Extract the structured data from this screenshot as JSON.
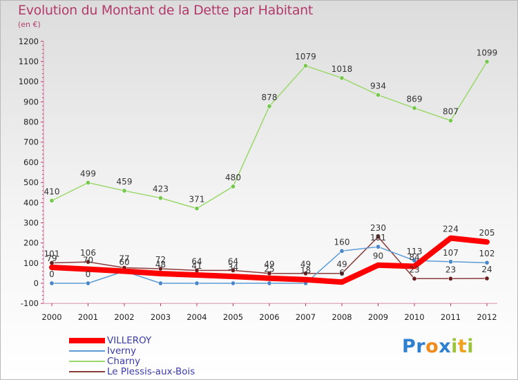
{
  "header": {
    "title": "Evolution du Montant de la Dette par Habitant",
    "unit": "(en €)"
  },
  "brand": {
    "letters": [
      {
        "ch": "P",
        "color": "#2f7fd0"
      },
      {
        "ch": "r",
        "color": "#2f7fd0"
      },
      {
        "ch": "o",
        "color": "#f08a1c"
      },
      {
        "ch": "x",
        "color": "#2f7fd0"
      },
      {
        "ch": "i",
        "color": "#9bc43b"
      },
      {
        "ch": "t",
        "color": "#f0a21c"
      },
      {
        "ch": "i",
        "color": "#9bc43b"
      }
    ]
  },
  "chart_data": {
    "type": "line",
    "title": "Evolution du Montant de la Dette par Habitant",
    "ylabel": "(en €)",
    "xlabel": "",
    "x": [
      "2000",
      "2001",
      "2002",
      "2003",
      "2004",
      "2005",
      "2006",
      "2007",
      "2008",
      "2009",
      "2010",
      "2011",
      "2012"
    ],
    "ylim": [
      -100,
      1200
    ],
    "yticks": [
      -100,
      0,
      100,
      200,
      300,
      400,
      500,
      600,
      700,
      800,
      900,
      1000,
      1100,
      1200
    ],
    "grid": false,
    "legend_position": "bottom-left",
    "series": [
      {
        "name": "VILLEROY",
        "color": "#ff0000",
        "width": 8,
        "marker": false,
        "values": [
          79,
          70,
          60,
          48,
          41,
          34,
          25,
          18,
          6,
          90,
          84,
          224,
          205
        ],
        "labels": [
          "79",
          "70",
          "60",
          "48",
          "41",
          "34",
          "25",
          "18",
          "6",
          "90",
          "84",
          "224",
          "205"
        ]
      },
      {
        "name": "Iverny",
        "color": "#5b9bd5",
        "width": 1.5,
        "marker": true,
        "marker_color": "#4a86c8",
        "values": [
          0,
          0,
          60,
          0,
          0,
          0,
          0,
          0,
          160,
          181,
          113,
          107,
          102
        ],
        "labels": [
          "0",
          "0",
          "",
          "",
          "",
          "",
          "",
          "",
          "160",
          "181",
          "113",
          "107",
          "102"
        ]
      },
      {
        "name": "Charny",
        "color": "#9ad86a",
        "width": 1.5,
        "marker": true,
        "marker_color": "#78c850",
        "values": [
          410,
          499,
          459,
          423,
          371,
          480,
          878,
          1079,
          1018,
          934,
          869,
          807,
          1099
        ],
        "labels": [
          "410",
          "499",
          "459",
          "423",
          "371",
          "480",
          "878",
          "1079",
          "1018",
          "934",
          "869",
          "807",
          "1099"
        ]
      },
      {
        "name": "Le Plessis-aux-Bois",
        "color": "#8b3a3a",
        "width": 1.5,
        "marker": true,
        "marker_color": "#6a1f1f",
        "values": [
          101,
          106,
          77,
          72,
          64,
          64,
          49,
          49,
          49,
          230,
          23,
          23,
          24
        ],
        "labels": [
          "101",
          "106",
          "77",
          "72",
          "64",
          "64",
          "49",
          "49",
          "49",
          "230",
          "23",
          "23",
          "24"
        ]
      }
    ]
  }
}
